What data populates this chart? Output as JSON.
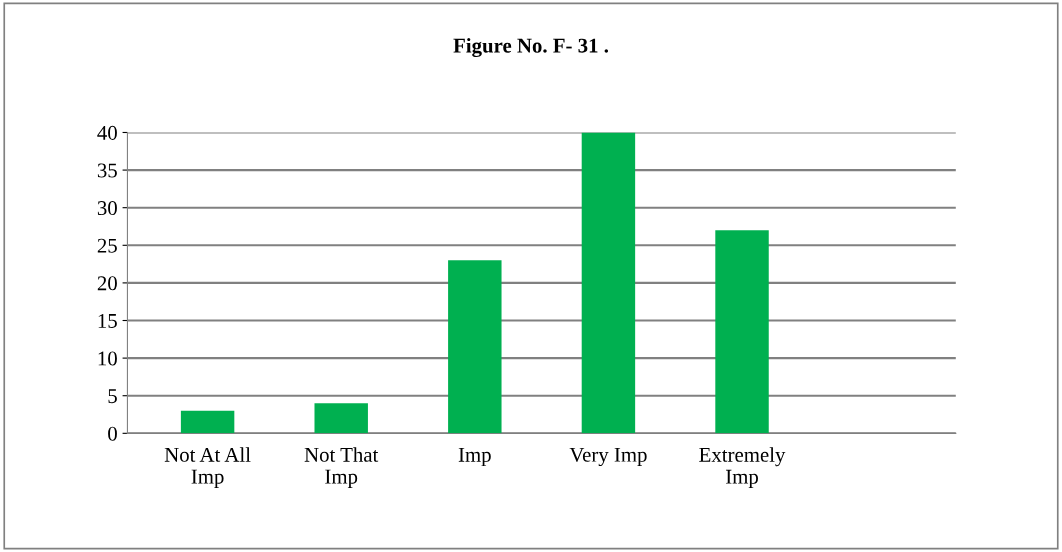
{
  "chart_data": {
    "type": "bar",
    "title": "Figure No. F- 31 .",
    "categories": [
      "Not At All\nImp",
      "Not That\nImp",
      "Imp",
      "Very Imp",
      "Extremely\nImp",
      null
    ],
    "values": [
      3,
      4,
      23,
      40,
      27,
      null
    ],
    "color": "#00b050",
    "ylim": [
      0,
      40
    ],
    "yticks": [
      0,
      5,
      10,
      15,
      20,
      25,
      30,
      35,
      40
    ],
    "grid": "y"
  }
}
